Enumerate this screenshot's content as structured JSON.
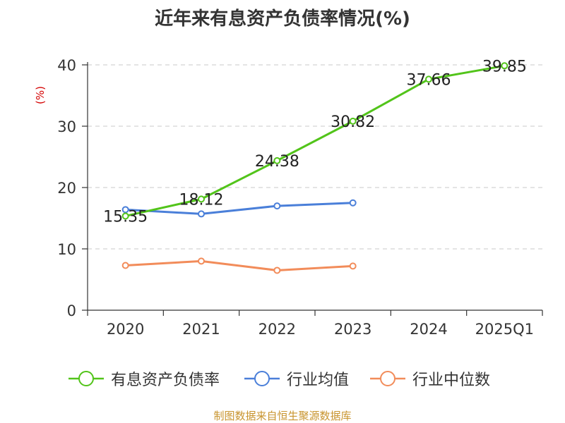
{
  "chart_data": {
    "type": "line",
    "title": "近年来有息资产负债率情况(%)",
    "ylabel": "(%)",
    "xlabel": "",
    "ylim": [
      0,
      40
    ],
    "yticks": [
      0,
      10,
      20,
      30,
      40
    ],
    "grid": true,
    "legend_position": "bottom",
    "categories": [
      "2020",
      "2021",
      "2022",
      "2023",
      "2024",
      "2025Q1"
    ],
    "series": [
      {
        "name": "有息资产负债率",
        "color": "#52c41a",
        "values": [
          15.35,
          18.12,
          24.38,
          30.82,
          37.66,
          39.85
        ],
        "data_labels": true
      },
      {
        "name": "行业均值",
        "color": "#4a7fd9",
        "values": [
          16.4,
          15.7,
          17.0,
          17.5,
          null,
          null
        ],
        "data_labels": false
      },
      {
        "name": "行业中位数",
        "color": "#f28c5a",
        "values": [
          7.3,
          8.0,
          6.5,
          7.2,
          null,
          null
        ],
        "data_labels": false
      }
    ]
  },
  "source_text": "制图数据来自恒生聚源数据库"
}
